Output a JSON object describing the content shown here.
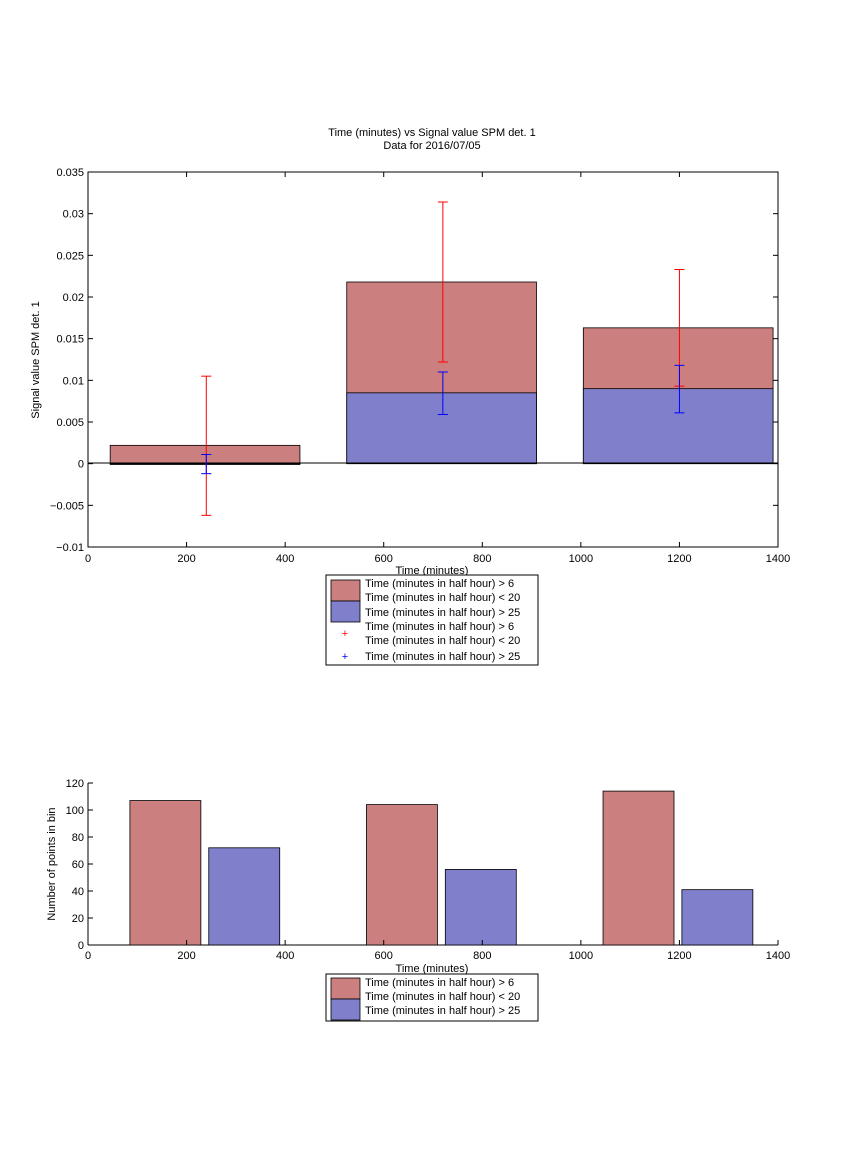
{
  "chart_data": [
    {
      "type": "bar",
      "title": "Time (minutes) vs Signal value SPM det. 1",
      "subtitle": "Data for 2016/07/05",
      "xlabel": "Time (minutes)",
      "ylabel": "Signal value SPM det. 1",
      "xlim": [
        0,
        1400
      ],
      "ylim": [
        -0.01,
        0.035
      ],
      "xticks": [
        0,
        200,
        400,
        600,
        800,
        1000,
        1200,
        1400
      ],
      "yticks": [
        -0.01,
        -0.005,
        0,
        0.005,
        0.01,
        0.015,
        0.02,
        0.025,
        0.03,
        0.035
      ],
      "ytick_labels": [
        "−0.01",
        "−0.005",
        "0",
        "0.005",
        "0.01",
        "0.015",
        "0.02",
        "0.025",
        "0.03",
        "0.035"
      ],
      "bar_range": [
        [
          45,
          430
        ],
        [
          525,
          910
        ],
        [
          1005,
          1390
        ]
      ],
      "series": [
        {
          "name": "Time (minutes in half hour) > 6\nTime (minutes in half hour) < 20",
          "color": "#cc7f7f",
          "values": [
            0.0022,
            0.0218,
            0.0163
          ]
        },
        {
          "name": "Time (minutes in half hour) > 25",
          "color": "#7f7fcc",
          "values": [
            -0.0001,
            0.0085,
            0.009
          ]
        }
      ],
      "errorbars": [
        {
          "name": "Time (minutes in half hour) > 6\nTime (minutes in half hour) < 20",
          "color": "#ff0000",
          "x": [
            240,
            720,
            1200
          ],
          "y": [
            0.0022,
            0.0218,
            0.0163
          ],
          "low": [
            -0.0062,
            0.0122,
            0.0093
          ],
          "high": [
            0.0105,
            0.0314,
            0.0233
          ]
        },
        {
          "name": "Time (minutes in half hour) > 25",
          "color": "#0000ff",
          "x": [
            240,
            720,
            1200
          ],
          "y": [
            -0.0001,
            0.0085,
            0.009
          ],
          "low": [
            -0.0012,
            0.0059,
            0.0061
          ],
          "high": [
            0.0011,
            0.011,
            0.0118
          ]
        }
      ],
      "legend": [
        "Time (minutes in half hour) > 6",
        "Time (minutes in half hour) < 20",
        "Time (minutes in half hour) > 25",
        "Time (minutes in half hour) > 6",
        "Time (minutes in half hour) < 20",
        "Time (minutes in half hour) > 25"
      ],
      "legend_placement": "below"
    },
    {
      "type": "bar",
      "title": "",
      "xlabel": "Time (minutes)",
      "ylabel": "Number of points in bin",
      "xlim": [
        0,
        1400
      ],
      "ylim": [
        0,
        120
      ],
      "xticks": [
        0,
        200,
        400,
        600,
        800,
        1000,
        1200,
        1400
      ],
      "yticks": [
        0,
        20,
        40,
        60,
        80,
        100,
        120
      ],
      "series": [
        {
          "name": "Time (minutes in half hour) > 6\nTime (minutes in half hour) < 20",
          "color": "#cc7f7f",
          "x": [
            [
              85,
              229
            ],
            [
              565,
              709
            ],
            [
              1045,
              1189
            ]
          ],
          "values": [
            107,
            104,
            114
          ]
        },
        {
          "name": "Time (minutes in half hour) > 25",
          "color": "#7f7fcc",
          "x": [
            [
              245,
              389
            ],
            [
              725,
              869
            ],
            [
              1205,
              1349
            ]
          ],
          "values": [
            72,
            56,
            41
          ]
        }
      ],
      "legend": [
        "Time (minutes in half hour) > 6",
        "Time (minutes in half hour) < 20",
        "Time (minutes in half hour) > 25"
      ],
      "legend_placement": "below"
    }
  ]
}
